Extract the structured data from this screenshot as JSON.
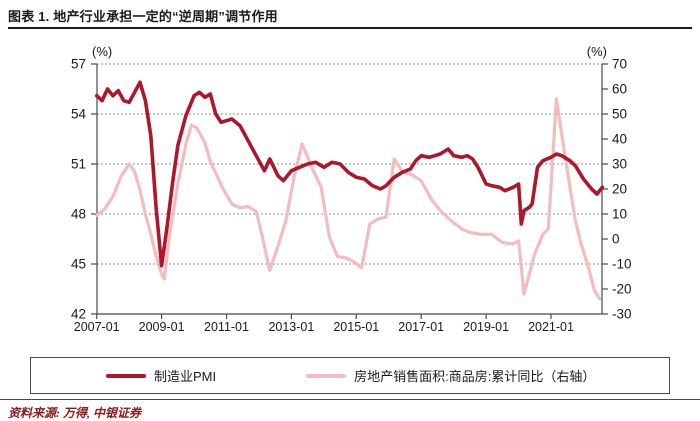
{
  "header": {
    "title": "图表 1. 地产行业承担一定的“逆周期”调节作用"
  },
  "footer": {
    "source": "资料来源: 万得, 中银证券"
  },
  "legend": [
    {
      "label": "制造业PMI",
      "color": "#b0162b"
    },
    {
      "label": "房地产销售面积:商品房:累计同比（右轴）",
      "color": "#f3bcbd"
    }
  ],
  "chart_data": {
    "type": "line",
    "left_axis": {
      "unit": "(%)",
      "ticks": [
        57,
        54,
        51,
        48,
        45,
        42
      ],
      "range": [
        42,
        57
      ]
    },
    "right_axis": {
      "unit": "(%)",
      "ticks": [
        70,
        60,
        50,
        40,
        30,
        20,
        10,
        0,
        -10,
        -20,
        -30
      ],
      "range": [
        -30,
        70
      ]
    },
    "x_axis": {
      "ticks": [
        "2007-01",
        "2009-01",
        "2011-01",
        "2013-01",
        "2015-01",
        "2017-01",
        "2019-01",
        "2021-01"
      ],
      "start": "2007-01",
      "end": "2022-08"
    },
    "grid": "dashed-horizontal",
    "series": [
      {
        "name": "房地产销售面积:商品房:累计同比（右轴）",
        "axis": "right",
        "color": "#f3bcbd",
        "width": 3.2,
        "points": [
          [
            "2007-01",
            9.5
          ],
          [
            "2007-04",
            12
          ],
          [
            "2007-07",
            17
          ],
          [
            "2007-10",
            25
          ],
          [
            "2008-01",
            30
          ],
          [
            "2008-03",
            27
          ],
          [
            "2008-05",
            19.5
          ],
          [
            "2008-07",
            10
          ],
          [
            "2008-09",
            2
          ],
          [
            "2008-11",
            -7
          ],
          [
            "2009-01",
            -14
          ],
          [
            "2009-02",
            -16
          ],
          [
            "2009-04",
            2
          ],
          [
            "2009-07",
            22
          ],
          [
            "2009-10",
            38
          ],
          [
            "2009-12",
            45.5
          ],
          [
            "2010-02",
            44.5
          ],
          [
            "2010-05",
            38.5
          ],
          [
            "2010-07",
            31
          ],
          [
            "2010-10",
            24
          ],
          [
            "2010-12",
            19.5
          ],
          [
            "2011-03",
            14
          ],
          [
            "2011-06",
            12.5
          ],
          [
            "2011-09",
            13
          ],
          [
            "2011-12",
            11
          ],
          [
            "2012-02",
            2
          ],
          [
            "2012-05",
            -12.5
          ],
          [
            "2012-08",
            -3
          ],
          [
            "2012-11",
            7.5
          ],
          [
            "2013-02",
            25
          ],
          [
            "2013-05",
            38
          ],
          [
            "2013-09",
            27.5
          ],
          [
            "2013-12",
            20.8
          ],
          [
            "2014-03",
            1
          ],
          [
            "2014-06",
            -7
          ],
          [
            "2014-09",
            -7.5
          ],
          [
            "2014-12",
            -9
          ],
          [
            "2015-03",
            -11.5
          ],
          [
            "2015-06",
            6
          ],
          [
            "2015-09",
            8
          ],
          [
            "2015-12",
            8.8
          ],
          [
            "2016-03",
            32
          ],
          [
            "2016-06",
            27
          ],
          [
            "2016-10",
            25.4
          ],
          [
            "2017-01",
            23.3
          ],
          [
            "2017-05",
            15.5
          ],
          [
            "2017-08",
            11.5
          ],
          [
            "2017-12",
            7.4
          ],
          [
            "2018-04",
            4
          ],
          [
            "2018-07",
            2.6
          ],
          [
            "2018-11",
            1.9
          ],
          [
            "2019-03",
            1.9
          ],
          [
            "2019-07",
            -1.4
          ],
          [
            "2019-11",
            -2
          ],
          [
            "2020-01",
            -0.7
          ],
          [
            "2020-03",
            -22
          ],
          [
            "2020-07",
            -5.8
          ],
          [
            "2020-10",
            1.9
          ],
          [
            "2020-12",
            4.1
          ],
          [
            "2021-03",
            56
          ],
          [
            "2021-07",
            27.5
          ],
          [
            "2021-10",
            7.5
          ],
          [
            "2021-12",
            -1.4
          ],
          [
            "2022-03",
            -12
          ],
          [
            "2022-05",
            -20.5
          ],
          [
            "2022-07",
            -23.9
          ]
        ]
      },
      {
        "name": "制造业PMI",
        "axis": "left",
        "color": "#b0162b",
        "width": 3.6,
        "points": [
          [
            "2007-01",
            55.1
          ],
          [
            "2007-03",
            54.8
          ],
          [
            "2007-05",
            55.5
          ],
          [
            "2007-07",
            55.1
          ],
          [
            "2007-09",
            55.4
          ],
          [
            "2007-11",
            54.8
          ],
          [
            "2008-01",
            54.7
          ],
          [
            "2008-03",
            55.3
          ],
          [
            "2008-05",
            55.9
          ],
          [
            "2008-07",
            54.8
          ],
          [
            "2008-09",
            52.7
          ],
          [
            "2008-11",
            48.3
          ],
          [
            "2009-01",
            44.9
          ],
          [
            "2009-03",
            47.2
          ],
          [
            "2009-05",
            49.8
          ],
          [
            "2009-07",
            52.1
          ],
          [
            "2009-10",
            53.9
          ],
          [
            "2010-01",
            55.1
          ],
          [
            "2010-03",
            55.3
          ],
          [
            "2010-05",
            55.0
          ],
          [
            "2010-07",
            55.2
          ],
          [
            "2010-09",
            54.0
          ],
          [
            "2010-11",
            53.5
          ],
          [
            "2011-01",
            53.6
          ],
          [
            "2011-03",
            53.7
          ],
          [
            "2011-06",
            53.3
          ],
          [
            "2011-08",
            52.7
          ],
          [
            "2011-10",
            52.1
          ],
          [
            "2012-01",
            51.2
          ],
          [
            "2012-03",
            50.6
          ],
          [
            "2012-05",
            51.3
          ],
          [
            "2012-08",
            50.3
          ],
          [
            "2012-10",
            50.0
          ],
          [
            "2013-01",
            50.6
          ],
          [
            "2013-04",
            50.8
          ],
          [
            "2013-07",
            51.0
          ],
          [
            "2013-10",
            51.1
          ],
          [
            "2014-01",
            50.8
          ],
          [
            "2014-04",
            51.1
          ],
          [
            "2014-07",
            51.0
          ],
          [
            "2014-10",
            50.5
          ],
          [
            "2015-01",
            50.2
          ],
          [
            "2015-04",
            50.1
          ],
          [
            "2015-07",
            49.7
          ],
          [
            "2015-10",
            49.5
          ],
          [
            "2015-12",
            49.7
          ],
          [
            "2016-03",
            50.2
          ],
          [
            "2016-06",
            50.5
          ],
          [
            "2016-09",
            50.7
          ],
          [
            "2016-11",
            51.2
          ],
          [
            "2017-01",
            51.5
          ],
          [
            "2017-04",
            51.4
          ],
          [
            "2017-08",
            51.6
          ],
          [
            "2017-11",
            51.9
          ],
          [
            "2018-01",
            51.5
          ],
          [
            "2018-04",
            51.4
          ],
          [
            "2018-06",
            51.5
          ],
          [
            "2018-08",
            51.3
          ],
          [
            "2018-10",
            50.8
          ],
          [
            "2019-01",
            49.8
          ],
          [
            "2019-03",
            49.7
          ],
          [
            "2019-06",
            49.6
          ],
          [
            "2019-08",
            49.4
          ],
          [
            "2019-11",
            49.6
          ],
          [
            "2020-01",
            49.8
          ],
          [
            "2020-02",
            47.4
          ],
          [
            "2020-03",
            48.2
          ],
          [
            "2020-05",
            48.4
          ],
          [
            "2020-06",
            48.6
          ],
          [
            "2020-08",
            50.8
          ],
          [
            "2020-10",
            51.2
          ],
          [
            "2021-01",
            51.4
          ],
          [
            "2021-03",
            51.6
          ],
          [
            "2021-05",
            51.5
          ],
          [
            "2021-08",
            51.2
          ],
          [
            "2021-10",
            50.9
          ],
          [
            "2022-01",
            50.1
          ],
          [
            "2022-04",
            49.5
          ],
          [
            "2022-06",
            49.2
          ],
          [
            "2022-08",
            49.6
          ]
        ]
      }
    ]
  }
}
